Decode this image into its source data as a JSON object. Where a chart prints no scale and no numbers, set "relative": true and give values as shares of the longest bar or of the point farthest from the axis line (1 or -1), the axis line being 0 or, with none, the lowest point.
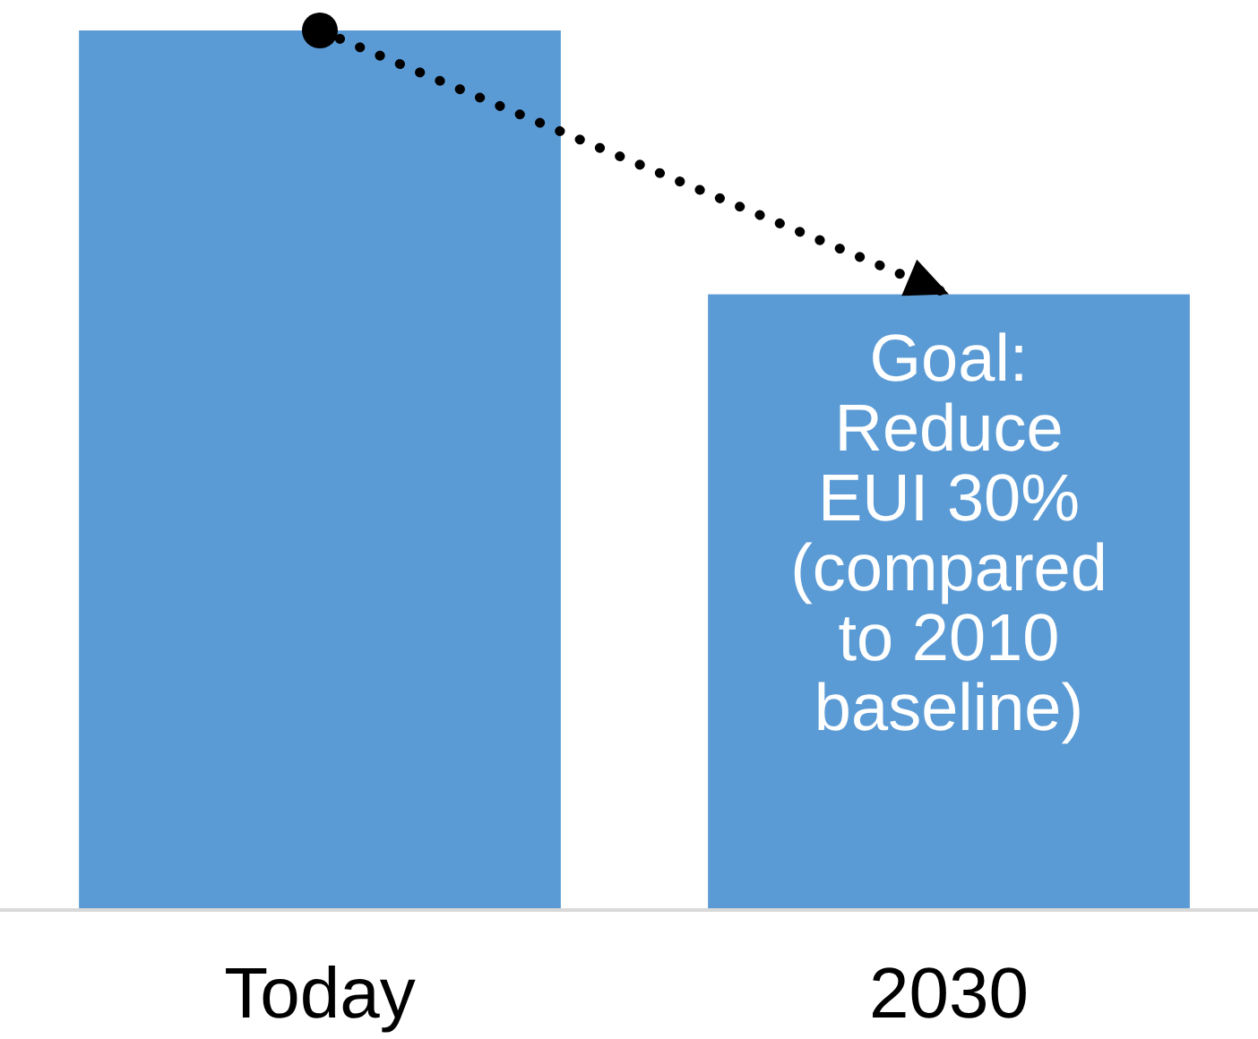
{
  "chart_data": {
    "type": "bar",
    "relative": true,
    "categories": [
      "Today",
      "2030"
    ],
    "series": [
      {
        "color": "#5b9bd5",
        "values": [
          1,
          0.7
        ]
      },
      {
        "type": "line",
        "color": "#000000",
        "values": [
          1,
          0.7
        ],
        "line_style": "dotted",
        "marker": "circle"
      }
    ],
    "annotations": [
      {
        "text": "Goal:\nReduce\nEUI 30%\n(compared\nto 2010\nbaseline)",
        "x": "2030",
        "y": 0.7
      }
    ]
  }
}
